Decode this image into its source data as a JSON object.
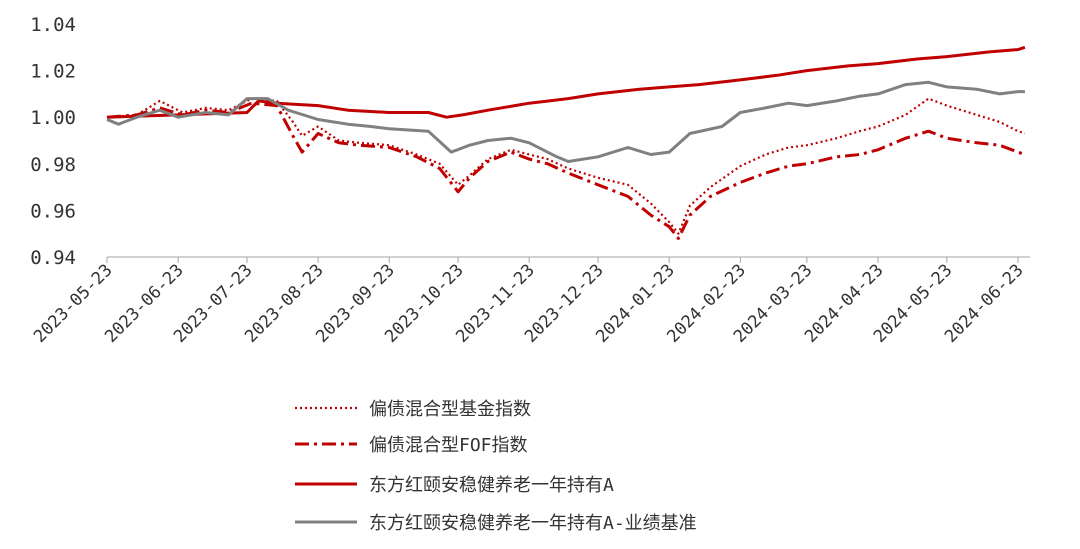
{
  "chart_data": {
    "type": "line",
    "title": "",
    "xlabel": "",
    "ylabel": "",
    "ylim": [
      0.94,
      1.04
    ],
    "yticks": [
      "0.94",
      "0.96",
      "0.98",
      "1.00",
      "1.02",
      "1.04"
    ],
    "xticks": [
      "2023-05-23",
      "2023-06-23",
      "2023-07-23",
      "2023-08-23",
      "2023-09-23",
      "2023-10-23",
      "2023-11-23",
      "2023-12-23",
      "2024-01-23",
      "2024-02-23",
      "2024-03-23",
      "2024-04-23",
      "2024-05-23",
      "2024-06-23"
    ],
    "grid": false,
    "legend_position": "bottom",
    "series": [
      {
        "name": "偏债混合型基金指数",
        "color": "#c00000",
        "style": "dotted",
        "points": [
          [
            "2023-05-23",
            1.0
          ],
          [
            "2023-06-05",
            1.001
          ],
          [
            "2023-06-15",
            1.007
          ],
          [
            "2023-06-25",
            1.002
          ],
          [
            "2023-07-05",
            1.004
          ],
          [
            "2023-07-15",
            1.003
          ],
          [
            "2023-07-25",
            1.008
          ],
          [
            "2023-08-05",
            1.007
          ],
          [
            "2023-08-12",
            0.998
          ],
          [
            "2023-08-16",
            0.992
          ],
          [
            "2023-08-23",
            0.996
          ],
          [
            "2023-09-01",
            0.99
          ],
          [
            "2023-09-10",
            0.989
          ],
          [
            "2023-09-23",
            0.988
          ],
          [
            "2023-10-05",
            0.984
          ],
          [
            "2023-10-15",
            0.98
          ],
          [
            "2023-10-23",
            0.971
          ],
          [
            "2023-10-28",
            0.975
          ],
          [
            "2023-11-05",
            0.982
          ],
          [
            "2023-11-15",
            0.986
          ],
          [
            "2023-11-23",
            0.984
          ],
          [
            "2023-12-01",
            0.982
          ],
          [
            "2023-12-10",
            0.978
          ],
          [
            "2023-12-23",
            0.974
          ],
          [
            "2024-01-05",
            0.971
          ],
          [
            "2024-01-15",
            0.963
          ],
          [
            "2024-01-23",
            0.955
          ],
          [
            "2024-01-27",
            0.95
          ],
          [
            "2024-02-01",
            0.962
          ],
          [
            "2024-02-10",
            0.97
          ],
          [
            "2024-02-23",
            0.979
          ],
          [
            "2024-03-05",
            0.984
          ],
          [
            "2024-03-15",
            0.987
          ],
          [
            "2024-03-23",
            0.988
          ],
          [
            "2024-04-05",
            0.991
          ],
          [
            "2024-04-15",
            0.994
          ],
          [
            "2024-04-23",
            0.996
          ],
          [
            "2024-05-05",
            1.001
          ],
          [
            "2024-05-15",
            1.008
          ],
          [
            "2024-05-23",
            1.005
          ],
          [
            "2024-06-05",
            1.001
          ],
          [
            "2024-06-15",
            0.998
          ],
          [
            "2024-06-23",
            0.994
          ],
          [
            "2024-06-26",
            0.993
          ]
        ]
      },
      {
        "name": "偏债混合型FOF指数",
        "color": "#c00000",
        "style": "dashdot",
        "points": [
          [
            "2023-05-23",
            1.0
          ],
          [
            "2023-06-05",
            1.001
          ],
          [
            "2023-06-15",
            1.004
          ],
          [
            "2023-06-25",
            1.001
          ],
          [
            "2023-07-05",
            1.003
          ],
          [
            "2023-07-15",
            1.002
          ],
          [
            "2023-07-25",
            1.006
          ],
          [
            "2023-08-05",
            1.005
          ],
          [
            "2023-08-12",
            0.992
          ],
          [
            "2023-08-16",
            0.985
          ],
          [
            "2023-08-23",
            0.993
          ],
          [
            "2023-09-01",
            0.989
          ],
          [
            "2023-09-10",
            0.988
          ],
          [
            "2023-09-23",
            0.987
          ],
          [
            "2023-10-05",
            0.983
          ],
          [
            "2023-10-15",
            0.978
          ],
          [
            "2023-10-23",
            0.968
          ],
          [
            "2023-10-28",
            0.974
          ],
          [
            "2023-11-05",
            0.981
          ],
          [
            "2023-11-15",
            0.985
          ],
          [
            "2023-11-23",
            0.982
          ],
          [
            "2023-12-01",
            0.98
          ],
          [
            "2023-12-10",
            0.976
          ],
          [
            "2023-12-23",
            0.971
          ],
          [
            "2024-01-05",
            0.966
          ],
          [
            "2024-01-15",
            0.958
          ],
          [
            "2024-01-23",
            0.953
          ],
          [
            "2024-01-27",
            0.948
          ],
          [
            "2024-02-01",
            0.958
          ],
          [
            "2024-02-10",
            0.966
          ],
          [
            "2024-02-23",
            0.972
          ],
          [
            "2024-03-05",
            0.976
          ],
          [
            "2024-03-15",
            0.979
          ],
          [
            "2024-03-23",
            0.98
          ],
          [
            "2024-04-05",
            0.983
          ],
          [
            "2024-04-15",
            0.984
          ],
          [
            "2024-04-23",
            0.986
          ],
          [
            "2024-05-05",
            0.991
          ],
          [
            "2024-05-15",
            0.994
          ],
          [
            "2024-05-23",
            0.991
          ],
          [
            "2024-06-05",
            0.989
          ],
          [
            "2024-06-15",
            0.988
          ],
          [
            "2024-06-23",
            0.985
          ],
          [
            "2024-06-26",
            0.984
          ]
        ]
      },
      {
        "name": "东方红颐安稳健养老一年持有A",
        "color": "#c00000",
        "style": "solid",
        "points": [
          [
            "2023-05-23",
            1.0
          ],
          [
            "2023-06-23",
            1.001
          ],
          [
            "2023-07-23",
            1.002
          ],
          [
            "2023-07-28",
            1.007
          ],
          [
            "2023-08-05",
            1.006
          ],
          [
            "2023-08-23",
            1.005
          ],
          [
            "2023-09-05",
            1.003
          ],
          [
            "2023-09-23",
            1.002
          ],
          [
            "2023-10-10",
            1.002
          ],
          [
            "2023-10-18",
            1.0
          ],
          [
            "2023-10-25",
            1.001
          ],
          [
            "2023-11-05",
            1.003
          ],
          [
            "2023-11-23",
            1.006
          ],
          [
            "2023-12-10",
            1.008
          ],
          [
            "2023-12-23",
            1.01
          ],
          [
            "2024-01-10",
            1.012
          ],
          [
            "2024-01-23",
            1.013
          ],
          [
            "2024-02-05",
            1.014
          ],
          [
            "2024-02-23",
            1.016
          ],
          [
            "2024-03-10",
            1.018
          ],
          [
            "2024-03-23",
            1.02
          ],
          [
            "2024-04-10",
            1.022
          ],
          [
            "2024-04-23",
            1.023
          ],
          [
            "2024-05-10",
            1.025
          ],
          [
            "2024-05-23",
            1.026
          ],
          [
            "2024-06-10",
            1.028
          ],
          [
            "2024-06-23",
            1.029
          ],
          [
            "2024-06-26",
            1.03
          ]
        ]
      },
      {
        "name": "东方红颐安稳健养老一年持有A-业绩基准",
        "color": "#808080",
        "style": "solid",
        "points": [
          [
            "2023-05-23",
            0.999
          ],
          [
            "2023-05-28",
            0.997
          ],
          [
            "2023-06-05",
            1.0
          ],
          [
            "2023-06-15",
            1.003
          ],
          [
            "2023-06-23",
            1.0
          ],
          [
            "2023-07-05",
            1.002
          ],
          [
            "2023-07-15",
            1.001
          ],
          [
            "2023-07-23",
            1.008
          ],
          [
            "2023-08-01",
            1.008
          ],
          [
            "2023-08-10",
            1.003
          ],
          [
            "2023-08-23",
            0.999
          ],
          [
            "2023-09-05",
            0.997
          ],
          [
            "2023-09-15",
            0.996
          ],
          [
            "2023-09-23",
            0.995
          ],
          [
            "2023-10-10",
            0.994
          ],
          [
            "2023-10-20",
            0.985
          ],
          [
            "2023-10-28",
            0.988
          ],
          [
            "2023-11-05",
            0.99
          ],
          [
            "2023-11-15",
            0.991
          ],
          [
            "2023-11-23",
            0.989
          ],
          [
            "2023-12-05",
            0.983
          ],
          [
            "2023-12-10",
            0.981
          ],
          [
            "2023-12-23",
            0.983
          ],
          [
            "2024-01-05",
            0.987
          ],
          [
            "2024-01-15",
            0.984
          ],
          [
            "2024-01-23",
            0.985
          ],
          [
            "2024-02-01",
            0.993
          ],
          [
            "2024-02-15",
            0.996
          ],
          [
            "2024-02-23",
            1.002
          ],
          [
            "2024-03-05",
            1.004
          ],
          [
            "2024-03-15",
            1.006
          ],
          [
            "2024-03-23",
            1.005
          ],
          [
            "2024-04-05",
            1.007
          ],
          [
            "2024-04-15",
            1.009
          ],
          [
            "2024-04-23",
            1.01
          ],
          [
            "2024-05-05",
            1.014
          ],
          [
            "2024-05-15",
            1.015
          ],
          [
            "2024-05-23",
            1.013
          ],
          [
            "2024-06-05",
            1.012
          ],
          [
            "2024-06-15",
            1.01
          ],
          [
            "2024-06-23",
            1.011
          ],
          [
            "2024-06-26",
            1.011
          ]
        ]
      }
    ]
  }
}
